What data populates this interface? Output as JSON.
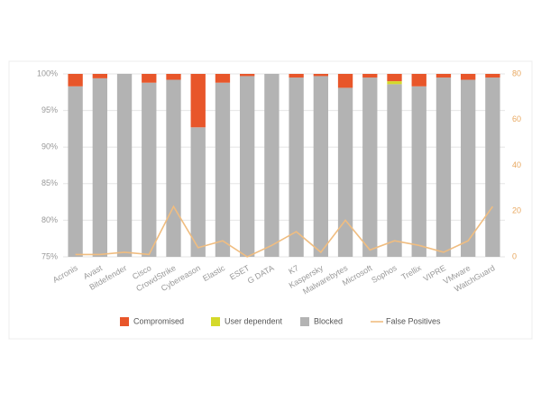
{
  "chart_data": {
    "type": "bar-line",
    "categories": [
      "Acronis",
      "Avast",
      "Bitdefender",
      "Cisco",
      "CrowdStrike",
      "Cybereason",
      "Elastic",
      "ESET",
      "G DATA",
      "K7",
      "Kaspersky",
      "Malwarebytes",
      "Microsoft",
      "Sophos",
      "Trellix",
      "VIPRE",
      "VMware",
      "WatchGuard"
    ],
    "series": [
      {
        "name": "Compromised",
        "type": "bar",
        "color": "#e8562a",
        "values": [
          1.7,
          0.6,
          0,
          1.2,
          0.8,
          7.3,
          1.2,
          0.3,
          0,
          0.5,
          0.3,
          1.9,
          0.5,
          1.0,
          1.7,
          0.5,
          0.8,
          0.5
        ]
      },
      {
        "name": "User dependent",
        "type": "bar",
        "color": "#d4d92a",
        "values": [
          0,
          0,
          0,
          0,
          0,
          0,
          0,
          0,
          0,
          0,
          0,
          0,
          0,
          0.4,
          0,
          0,
          0,
          0
        ]
      },
      {
        "name": "Blocked",
        "type": "bar",
        "color": "#b3b3b3",
        "values": [
          98.3,
          99.4,
          100,
          98.8,
          99.2,
          92.7,
          98.8,
          99.7,
          100,
          99.5,
          99.7,
          98.1,
          99.5,
          98.6,
          98.3,
          99.5,
          99.2,
          99.5
        ]
      },
      {
        "name": "False Positives",
        "type": "line",
        "axis": "y2",
        "color": "#f0bd80",
        "values": [
          1,
          1,
          2,
          1,
          22,
          4,
          7,
          0,
          5,
          11,
          2,
          16,
          3,
          7,
          5,
          2,
          7,
          22
        ]
      }
    ],
    "ylim": [
      75,
      100
    ],
    "yticks": [
      {
        "value": 75,
        "label": "75%"
      },
      {
        "value": 80,
        "label": "80%"
      },
      {
        "value": 85,
        "label": "85%"
      },
      {
        "value": 90,
        "label": "90%"
      },
      {
        "value": 95,
        "label": "95%"
      },
      {
        "value": 100,
        "label": "100%"
      }
    ],
    "y2lim": [
      0,
      80
    ],
    "y2ticks": [
      0,
      20,
      40,
      60,
      80
    ],
    "grid": true
  }
}
